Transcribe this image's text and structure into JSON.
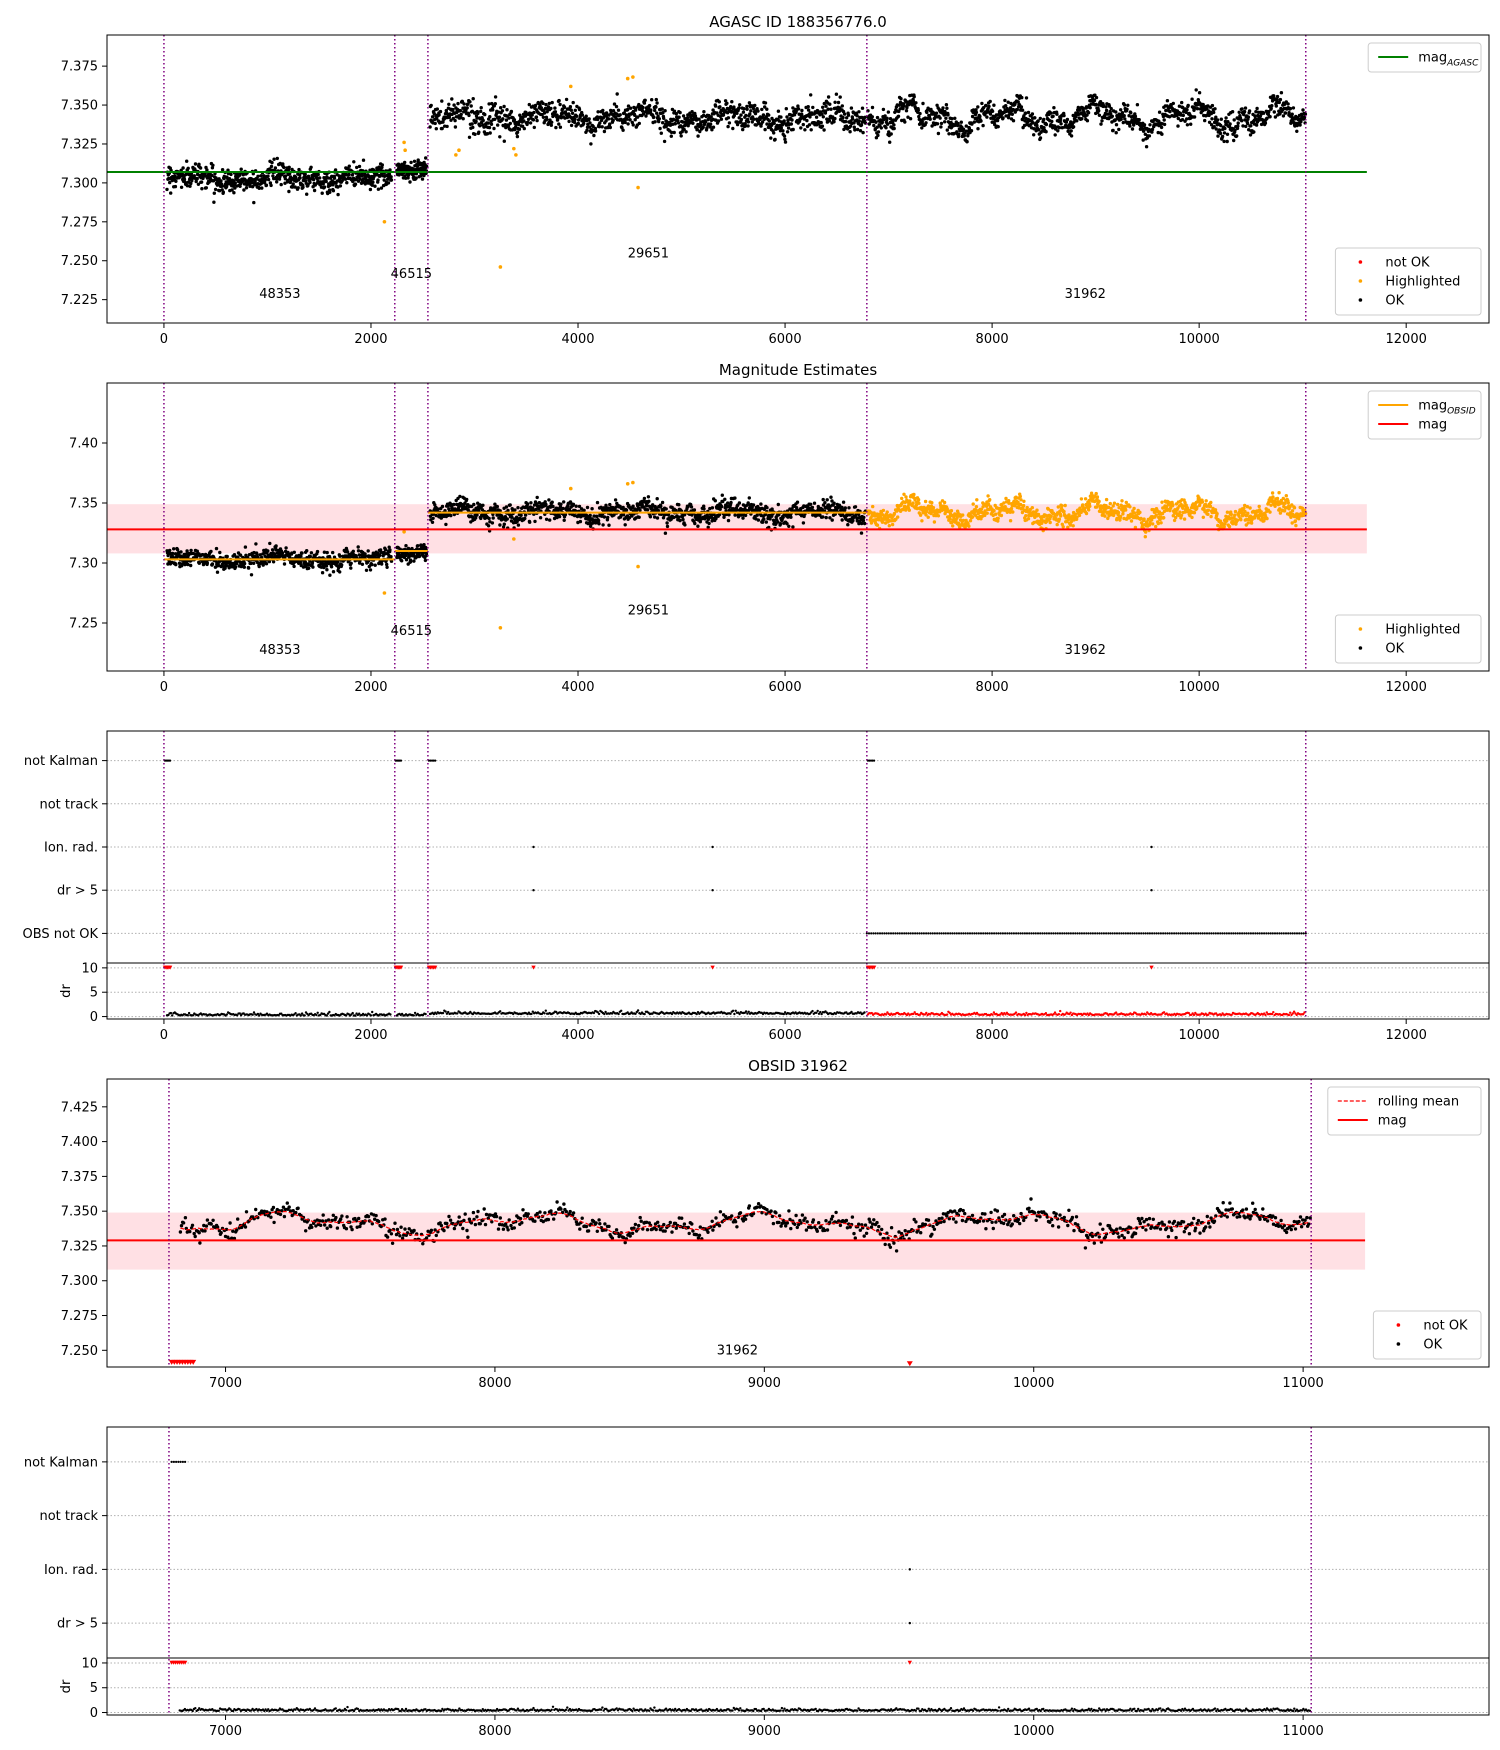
{
  "figure": {
    "panels": [
      "AGASC ID 188356776.0",
      "Magnitude Estimates",
      "",
      "OBSID 31962",
      ""
    ]
  },
  "colors": {
    "ok": "#000000",
    "not_ok": "#ff0000",
    "highlighted": "#ffa500",
    "agasc_line": "#008000",
    "obsid_line": "#ffa500",
    "mag_line": "#ff0000",
    "band": "#ffdde1",
    "obs_boundary": "#800080",
    "grid": "#b0b0b0"
  },
  "chart_data": [
    {
      "type": "scatter",
      "title": "AGASC ID 188356776.0",
      "xlim": [
        -550,
        12800
      ],
      "ylim": [
        7.21,
        7.395
      ],
      "xticks": [
        0,
        2000,
        4000,
        6000,
        8000,
        10000,
        12000
      ],
      "yticks": [
        7.225,
        7.25,
        7.275,
        7.3,
        7.325,
        7.35,
        7.375
      ],
      "ytick_decimals": 3,
      "boundaries": [
        0,
        2230,
        2550,
        6790,
        11030
      ],
      "obsids": [
        {
          "label": "48353",
          "x": 1120,
          "y": 7.226
        },
        {
          "label": "46515",
          "x": 2390,
          "y": 7.239
        },
        {
          "label": "29651",
          "x": 4680,
          "y": 7.252
        },
        {
          "label": "31962",
          "x": 8900,
          "y": 7.226
        }
      ],
      "segments": [
        {
          "x0": 30,
          "x1": 2200,
          "mean": 7.303,
          "amp": 0.004,
          "noise": 0.008,
          "n": 620
        },
        {
          "x0": 2250,
          "x1": 2540,
          "mean": 7.31,
          "amp": 0.003,
          "noise": 0.007,
          "n": 120
        },
        {
          "x0": 2570,
          "x1": 6780,
          "mean": 7.342,
          "amp": 0.006,
          "noise": 0.009,
          "n": 1050
        },
        {
          "x0": 6800,
          "x1": 11030,
          "mean": 7.342,
          "amp": 0.01,
          "noise": 0.008,
          "n": 1050
        }
      ],
      "hlines": [
        {
          "y": 7.307,
          "x0": -550,
          "x1": 11620,
          "color": "#008000",
          "label": "mag_AGASC"
        }
      ],
      "highlighted_points": [
        [
          2130,
          7.275
        ],
        [
          2320,
          7.326
        ],
        [
          2330,
          7.321
        ],
        [
          3250,
          7.246
        ],
        [
          3380,
          7.322
        ],
        [
          3400,
          7.318
        ],
        [
          2850,
          7.321
        ],
        [
          2820,
          7.318
        ],
        [
          4480,
          7.367
        ],
        [
          4530,
          7.368
        ],
        [
          4580,
          7.297
        ],
        [
          3930,
          7.362
        ]
      ],
      "legends": [
        {
          "position": "top-right",
          "entries": [
            {
              "label": "mag",
              "sub": "AGASC",
              "kind": "line",
              "color": "#008000"
            }
          ]
        },
        {
          "position": "bottom-right",
          "entries": [
            {
              "label": "not OK",
              "kind": "marker",
              "color": "#ff0000"
            },
            {
              "label": "Highlighted",
              "kind": "marker",
              "color": "#ffa500"
            },
            {
              "label": "OK",
              "kind": "marker",
              "color": "#000000"
            }
          ]
        }
      ]
    },
    {
      "type": "scatter",
      "title": "Magnitude Estimates",
      "xlim": [
        -550,
        12800
      ],
      "ylim": [
        7.21,
        7.45
      ],
      "xticks": [
        0,
        2000,
        4000,
        6000,
        8000,
        10000,
        12000
      ],
      "yticks": [
        7.25,
        7.3,
        7.35,
        7.4
      ],
      "ytick_decimals": 2,
      "boundaries": [
        0,
        2230,
        2550,
        6790,
        11030
      ],
      "obsids": [
        {
          "label": "48353",
          "x": 1120,
          "y": 7.224
        },
        {
          "label": "46515",
          "x": 2390,
          "y": 7.24
        },
        {
          "label": "29651",
          "x": 4680,
          "y": 7.257
        },
        {
          "label": "31962",
          "x": 8900,
          "y": 7.224
        }
      ],
      "segments": [
        {
          "x0": 30,
          "x1": 2200,
          "mean": 7.303,
          "amp": 0.004,
          "noise": 0.008,
          "n": 620,
          "color": "#000000"
        },
        {
          "x0": 2250,
          "x1": 2540,
          "mean": 7.31,
          "amp": 0.003,
          "noise": 0.007,
          "n": 120,
          "color": "#000000"
        },
        {
          "x0": 2570,
          "x1": 6780,
          "mean": 7.342,
          "amp": 0.006,
          "noise": 0.009,
          "n": 1050,
          "color": "#000000"
        },
        {
          "x0": 6800,
          "x1": 11030,
          "mean": 7.342,
          "amp": 0.01,
          "noise": 0.008,
          "n": 1050,
          "color": "#ffa500"
        }
      ],
      "band": {
        "y0": 7.308,
        "y1": 7.349,
        "x0": -550,
        "x1": 11620
      },
      "hlines": [
        {
          "y": 7.328,
          "x0": -550,
          "x1": 11620,
          "color": "#ff0000",
          "label": "mag"
        },
        {
          "y": 7.303,
          "x0": 0,
          "x1": 2230,
          "color": "#ffa500"
        },
        {
          "y": 7.31,
          "x0": 2230,
          "x1": 2550,
          "color": "#ffa500"
        },
        {
          "y": 7.342,
          "x0": 2550,
          "x1": 6790,
          "color": "#ffa500"
        }
      ],
      "highlighted_points": [
        [
          2130,
          7.275
        ],
        [
          2320,
          7.326
        ],
        [
          3250,
          7.246
        ],
        [
          3380,
          7.32
        ],
        [
          4480,
          7.366
        ],
        [
          4530,
          7.367
        ],
        [
          4580,
          7.297
        ],
        [
          3930,
          7.362
        ]
      ],
      "legends": [
        {
          "position": "top-right",
          "entries": [
            {
              "label": "mag",
              "sub": "OBSID",
              "kind": "line",
              "color": "#ffa500"
            },
            {
              "label": "mag",
              "kind": "line",
              "color": "#ff0000"
            }
          ]
        },
        {
          "position": "bottom-right",
          "entries": [
            {
              "label": "Highlighted",
              "kind": "marker",
              "color": "#ffa500"
            },
            {
              "label": "OK",
              "kind": "marker",
              "color": "#000000"
            }
          ]
        }
      ]
    },
    {
      "type": "scatter",
      "title": "",
      "xlim": [
        -550,
        12800
      ],
      "xticks": [
        0,
        2000,
        4000,
        6000,
        8000,
        10000,
        12000
      ],
      "boundaries": [
        0,
        2230,
        2550,
        6790,
        11030
      ],
      "flag_categories": [
        "not Kalman",
        "not track",
        "Ion. rad.",
        "dr > 5",
        "OBS not OK"
      ],
      "flags": [
        {
          "category": "not Kalman",
          "ranges": [
            [
              10,
              60
            ],
            [
              2240,
              2290
            ],
            [
              2560,
              2620
            ],
            [
              6800,
              6860
            ]
          ]
        },
        {
          "category": "Ion. rad.",
          "points": [
            3570,
            5300,
            9540
          ]
        },
        {
          "category": "dr > 5",
          "points": [
            3570,
            5300,
            9540
          ]
        },
        {
          "category": "OBS not OK",
          "ranges": [
            [
              6790,
              11030
            ]
          ]
        }
      ],
      "dr": {
        "ylabel": "dr",
        "ylim": [
          -0.5,
          11
        ],
        "yticks": [
          0,
          5,
          10
        ],
        "segments": [
          {
            "x0": 30,
            "x1": 2200,
            "level": 0.3,
            "color": "#000000"
          },
          {
            "x0": 2250,
            "x1": 2540,
            "level": 0.3,
            "color": "#000000"
          },
          {
            "x0": 2570,
            "x1": 6780,
            "level": 0.6,
            "color": "#000000"
          },
          {
            "x0": 6800,
            "x1": 11030,
            "level": 0.4,
            "color": "#ff0000"
          }
        ],
        "saturated_ranges": [
          [
            10,
            60
          ],
          [
            2240,
            2290
          ],
          [
            2560,
            2620
          ],
          [
            6800,
            6860
          ]
        ],
        "saturated_points": [
          3570,
          5300,
          9540
        ]
      }
    },
    {
      "type": "scatter",
      "title": "OBSID 31962",
      "xlim": [
        6560,
        11690
      ],
      "ylim": [
        7.238,
        7.445
      ],
      "xticks": [
        7000,
        8000,
        9000,
        10000,
        11000
      ],
      "yticks": [
        7.25,
        7.275,
        7.3,
        7.325,
        7.35,
        7.375,
        7.4,
        7.425
      ],
      "ytick_decimals": 3,
      "boundaries": [
        6790,
        11030
      ],
      "obsids": [
        {
          "label": "31962",
          "x": 8900,
          "y": 7.247
        }
      ],
      "segments": [
        {
          "x0": 6830,
          "x1": 11030,
          "mean": 7.341,
          "amp": 0.01,
          "noise": 0.007,
          "n": 900,
          "color": "#000000"
        }
      ],
      "rolling_mean": {
        "label": "rolling mean",
        "color": "#ff0000"
      },
      "band": {
        "y0": 7.308,
        "y1": 7.349,
        "x0": 6560,
        "x1": 11230
      },
      "hlines": [
        {
          "y": 7.329,
          "x0": 6560,
          "x1": 11230,
          "color": "#ff0000",
          "label": "mag"
        }
      ],
      "not_ok_points": [
        [
          6800,
          7.241
        ],
        [
          6810,
          7.241
        ],
        [
          6820,
          7.241
        ],
        [
          6830,
          7.241
        ],
        [
          6840,
          7.241
        ],
        [
          6850,
          7.241
        ],
        [
          6860,
          7.241
        ],
        [
          6870,
          7.241
        ],
        [
          6880,
          7.241
        ],
        [
          9540,
          7.24
        ]
      ],
      "legends": [
        {
          "position": "top-right",
          "entries": [
            {
              "label": "rolling mean",
              "kind": "dashed",
              "color": "#ff0000"
            },
            {
              "label": "mag",
              "kind": "line",
              "color": "#ff0000"
            }
          ]
        },
        {
          "position": "bottom-right",
          "entries": [
            {
              "label": "not OK",
              "kind": "marker",
              "color": "#ff0000"
            },
            {
              "label": "OK",
              "kind": "marker",
              "color": "#000000"
            }
          ]
        }
      ]
    },
    {
      "type": "scatter",
      "title": "",
      "xlim": [
        6560,
        11690
      ],
      "xticks": [
        7000,
        8000,
        9000,
        10000,
        11000
      ],
      "boundaries": [
        6790,
        11030
      ],
      "flag_categories": [
        "not Kalman",
        "not track",
        "Ion. rad.",
        "dr > 5"
      ],
      "flags": [
        {
          "category": "not Kalman",
          "ranges": [
            [
              6800,
              6850
            ]
          ]
        },
        {
          "category": "Ion. rad.",
          "points": [
            9540
          ]
        },
        {
          "category": "dr > 5",
          "points": [
            9540
          ]
        }
      ],
      "dr": {
        "ylabel": "dr",
        "ylim": [
          -0.5,
          11
        ],
        "yticks": [
          0,
          5,
          10
        ],
        "segments": [
          {
            "x0": 6830,
            "x1": 11030,
            "level": 0.4,
            "color": "#000000"
          }
        ],
        "saturated_ranges": [
          [
            6800,
            6850
          ]
        ],
        "saturated_points": [
          9540
        ]
      }
    }
  ]
}
